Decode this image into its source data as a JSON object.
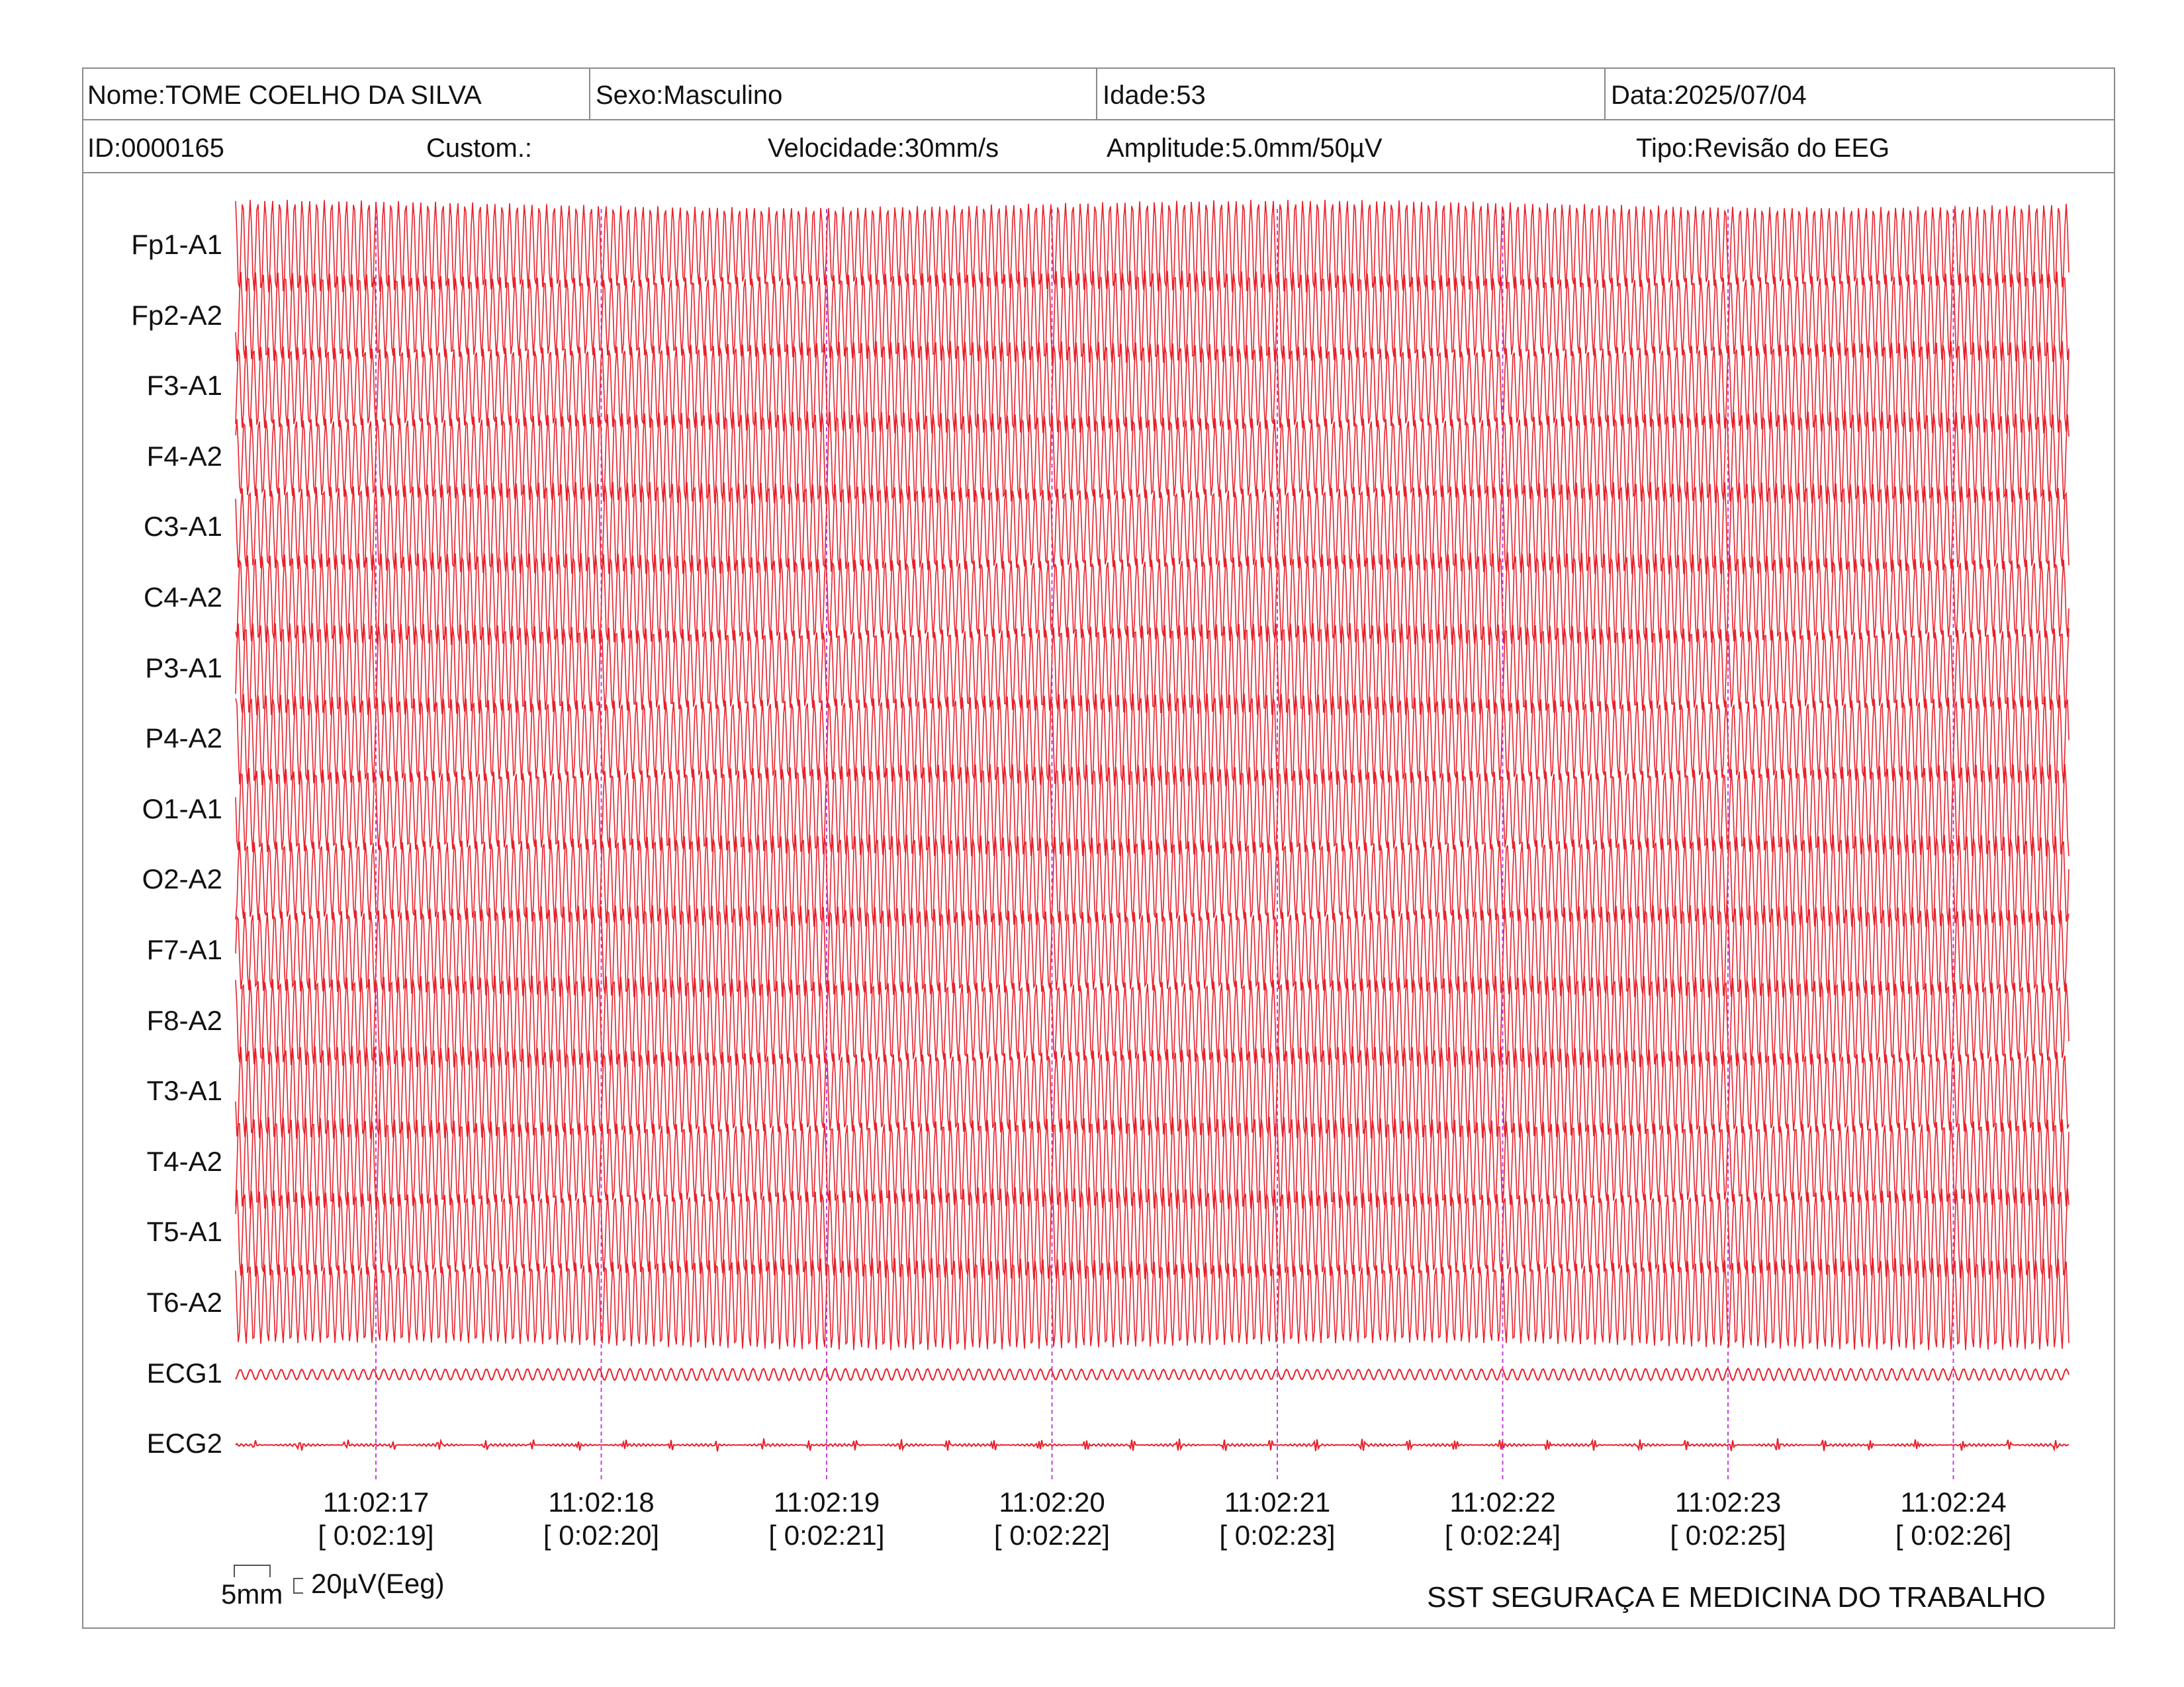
{
  "header": {
    "nome": "Nome:TOME COELHO DA SILVA",
    "sexo": "Sexo:Masculino",
    "idade": "Idade:53",
    "data": "Data:2025/07/04",
    "id": "ID:0000165",
    "custom": "Custom.:",
    "velocidade": "Velocidade:30mm/s",
    "amplitude": "Amplitude:5.0mm/50µV",
    "tipo": "Tipo:Revisão do EEG"
  },
  "channels": [
    "Fp1-A1",
    "Fp2-A2",
    "F3-A1",
    "F4-A2",
    "C3-A1",
    "C4-A2",
    "P3-A1",
    "P4-A2",
    "O1-A1",
    "O2-A2",
    "F7-A1",
    "F8-A2",
    "T3-A1",
    "T4-A2",
    "T5-A1",
    "T6-A2",
    "ECG1",
    "ECG2"
  ],
  "time_marks": [
    {
      "clock": "11:02:17",
      "elapsed": "[ 0:02:19]"
    },
    {
      "clock": "11:02:18",
      "elapsed": "[ 0:02:20]"
    },
    {
      "clock": "11:02:19",
      "elapsed": "[ 0:02:21]"
    },
    {
      "clock": "11:02:20",
      "elapsed": "[ 0:02:22]"
    },
    {
      "clock": "11:02:21",
      "elapsed": "[ 0:02:23]"
    },
    {
      "clock": "11:02:22",
      "elapsed": "[ 0:02:24]"
    },
    {
      "clock": "11:02:23",
      "elapsed": "[ 0:02:25]"
    },
    {
      "clock": "11:02:24",
      "elapsed": "[ 0:02:26]"
    }
  ],
  "scale": {
    "time": "5mm",
    "amplitude": "20µV(Eeg)"
  },
  "footer": "SST SEGURAÇA E MEDICINA DO TRABALHO",
  "colors": {
    "trace": "#e8202a",
    "marker": "#c040e0",
    "border": "#8a8a8a"
  }
}
